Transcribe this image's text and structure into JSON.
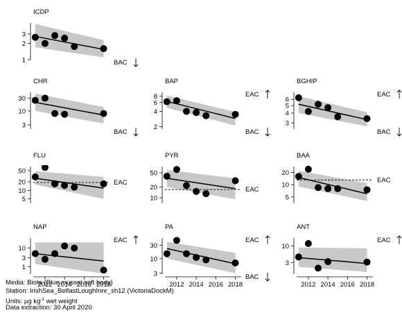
{
  "chart_data": [
    {
      "type": "scatter",
      "title": "ICDP",
      "y_scale": "log",
      "ylim": [
        1,
        4.8
      ],
      "yticks": [
        1,
        2,
        3
      ],
      "x": [
        2011,
        2012,
        2013,
        2014,
        2015,
        2018
      ],
      "values": [
        2.6,
        2.0,
        2.8,
        2.5,
        1.75,
        1.6
      ],
      "trend": [
        2.7,
        1.55
      ],
      "band_upper": [
        4.6,
        2.3
      ],
      "band_lower": [
        1.7,
        1.1
      ],
      "thresholds": [
        {
          "label": "BAC",
          "direction": "down"
        }
      ]
    },
    {
      "type": "scatter",
      "title": "CHR",
      "y_scale": "log",
      "ylim": [
        2.1,
        50
      ],
      "yticks": [
        3,
        10,
        30
      ],
      "x": [
        2011,
        2012,
        2013,
        2014,
        2018
      ],
      "values": [
        25,
        30,
        8,
        7.5,
        8
      ],
      "trend": [
        21,
        7
      ],
      "band_upper": [
        45,
        14
      ],
      "band_lower": [
        10,
        3.4
      ],
      "thresholds": [
        {
          "label": "BAC",
          "direction": "down"
        }
      ]
    },
    {
      "type": "scatter",
      "title": "BAP",
      "y_scale": "log",
      "ylim": [
        1.8,
        9.5
      ],
      "yticks": [
        2,
        4,
        6,
        8
      ],
      "x": [
        2011,
        2012,
        2013,
        2014,
        2015,
        2018
      ],
      "values": [
        6.2,
        6.5,
        4.0,
        3.8,
        3.3,
        3.5
      ],
      "trend": [
        6.3,
        2.9
      ],
      "band_upper": [
        8.2,
        3.9
      ],
      "band_lower": [
        4.7,
        2.1
      ],
      "thresholds": [
        {
          "label": "EAC",
          "direction": "up"
        },
        {
          "label": "BAC",
          "direction": "down"
        }
      ]
    },
    {
      "type": "scatter",
      "title": "BGHIP",
      "y_scale": "log",
      "ylim": [
        2.5,
        7.4
      ],
      "yticks": [
        3,
        4,
        5,
        6
      ],
      "x": [
        2011,
        2012,
        2013,
        2014,
        2015,
        2018
      ],
      "values": [
        6.3,
        4.2,
        5.2,
        4.7,
        3.6,
        3.4
      ],
      "trend": [
        5.2,
        3.3
      ],
      "band_upper": [
        6.6,
        4.1
      ],
      "band_lower": [
        4.0,
        2.7
      ],
      "thresholds": [
        {
          "label": "EAC",
          "direction": "up"
        },
        {
          "label": "BAC",
          "direction": "down"
        }
      ]
    },
    {
      "type": "scatter",
      "title": "FLU",
      "y_scale": "log",
      "ylim": [
        3.5,
        70
      ],
      "yticks": [
        5,
        10,
        20,
        50
      ],
      "x": [
        2011,
        2012,
        2013,
        2014,
        2015,
        2018
      ],
      "values": [
        30,
        65,
        17,
        15,
        13,
        17
      ],
      "trend": [
        27,
        12
      ],
      "band_upper": [
        48,
        30
      ],
      "band_lower": [
        16,
        5
      ],
      "reference_line": 19,
      "thresholds": [
        {
          "label": "EAC",
          "direction": "none"
        }
      ]
    },
    {
      "type": "scatter",
      "title": "PYR",
      "y_scale": "log",
      "ylim": [
        7,
        75
      ],
      "yticks": [
        10,
        20,
        50
      ],
      "x": [
        2011,
        2012,
        2013,
        2014,
        2015,
        2018
      ],
      "values": [
        40,
        62,
        22,
        15,
        13,
        30
      ],
      "trend": [
        35,
        18
      ],
      "band_upper": [
        60,
        35
      ],
      "band_lower": [
        20,
        9
      ],
      "reference_line": 17,
      "thresholds": [
        {
          "label": "EAC",
          "direction": "none"
        }
      ]
    },
    {
      "type": "scatter",
      "title": "BAA",
      "y_scale": "log",
      "ylim": [
        3.5,
        28
      ],
      "yticks": [
        5,
        10,
        20
      ],
      "x": [
        2011,
        2012,
        2013,
        2014,
        2015,
        2018
      ],
      "values": [
        16,
        24,
        8.5,
        8,
        8,
        7.5
      ],
      "trend": [
        15,
        6
      ],
      "band_upper": [
        22,
        11
      ],
      "band_lower": [
        9,
        4
      ],
      "reference_line": 13,
      "thresholds": [
        {
          "label": "EAC",
          "direction": "none"
        }
      ]
    },
    {
      "type": "scatter",
      "title": "NAP",
      "y_scale": "log",
      "ylim": [
        0.4,
        35
      ],
      "yticks": [
        1,
        3,
        10
      ],
      "x": [
        2011,
        2012,
        2013,
        2014,
        2015,
        2018
      ],
      "values": [
        5,
        2.5,
        5,
        13,
        10,
        0.65
      ],
      "trend": [
        5,
        2
      ],
      "band_upper": [
        20,
        20
      ],
      "band_lower": [
        1.4,
        0.42
      ],
      "thresholds": [
        {
          "label": "EAC",
          "direction": "up"
        }
      ]
    },
    {
      "type": "scatter",
      "title": "PA",
      "y_scale": "log",
      "ylim": [
        2.8,
        55
      ],
      "yticks": [
        3,
        10,
        30
      ],
      "x": [
        2011,
        2012,
        2013,
        2014,
        2015,
        2018
      ],
      "values": [
        15,
        45,
        15,
        11,
        9,
        7
      ],
      "trend": [
        23,
        6.5
      ],
      "band_upper": [
        40,
        16
      ],
      "band_lower": [
        10,
        3
      ],
      "thresholds": [
        {
          "label": "EAC",
          "direction": "up"
        },
        {
          "label": "BAC",
          "direction": "down"
        }
      ]
    },
    {
      "type": "scatter",
      "title": "ANT",
      "y_scale": "log",
      "ylim": [
        1.3,
        18
      ],
      "yticks": [
        3,
        10
      ],
      "x": [
        2011,
        2012,
        2013,
        2014,
        2018
      ],
      "values": [
        4.5,
        12,
        2.0,
        3.2,
        3.1
      ],
      "trend": [
        4.3,
        2.8
      ],
      "band_upper": [
        9,
        8.5
      ],
      "band_lower": [
        2.2,
        1.5
      ],
      "thresholds": [
        {
          "label": "EAC",
          "direction": "up"
        }
      ]
    }
  ],
  "x_axis": {
    "range": [
      2010.8,
      2018.6
    ],
    "ticks": [
      2012,
      2014,
      2016,
      2018
    ]
  },
  "colors": {
    "points": "#000000",
    "band": "#c8c8c8",
    "trend": "#000000",
    "axis": "#000000"
  },
  "caption": {
    "media": "Media: Biota (Blue mussel soft body)",
    "station": "Station: IrishSea_BelfastLoughInnr_sh12 (VictoriaDockM)",
    "units_prefix": "Units: µg kg",
    "units_sup": "-1",
    "units_suffix": " wet weight",
    "extraction": "Data extraction: 30 April 2020"
  }
}
